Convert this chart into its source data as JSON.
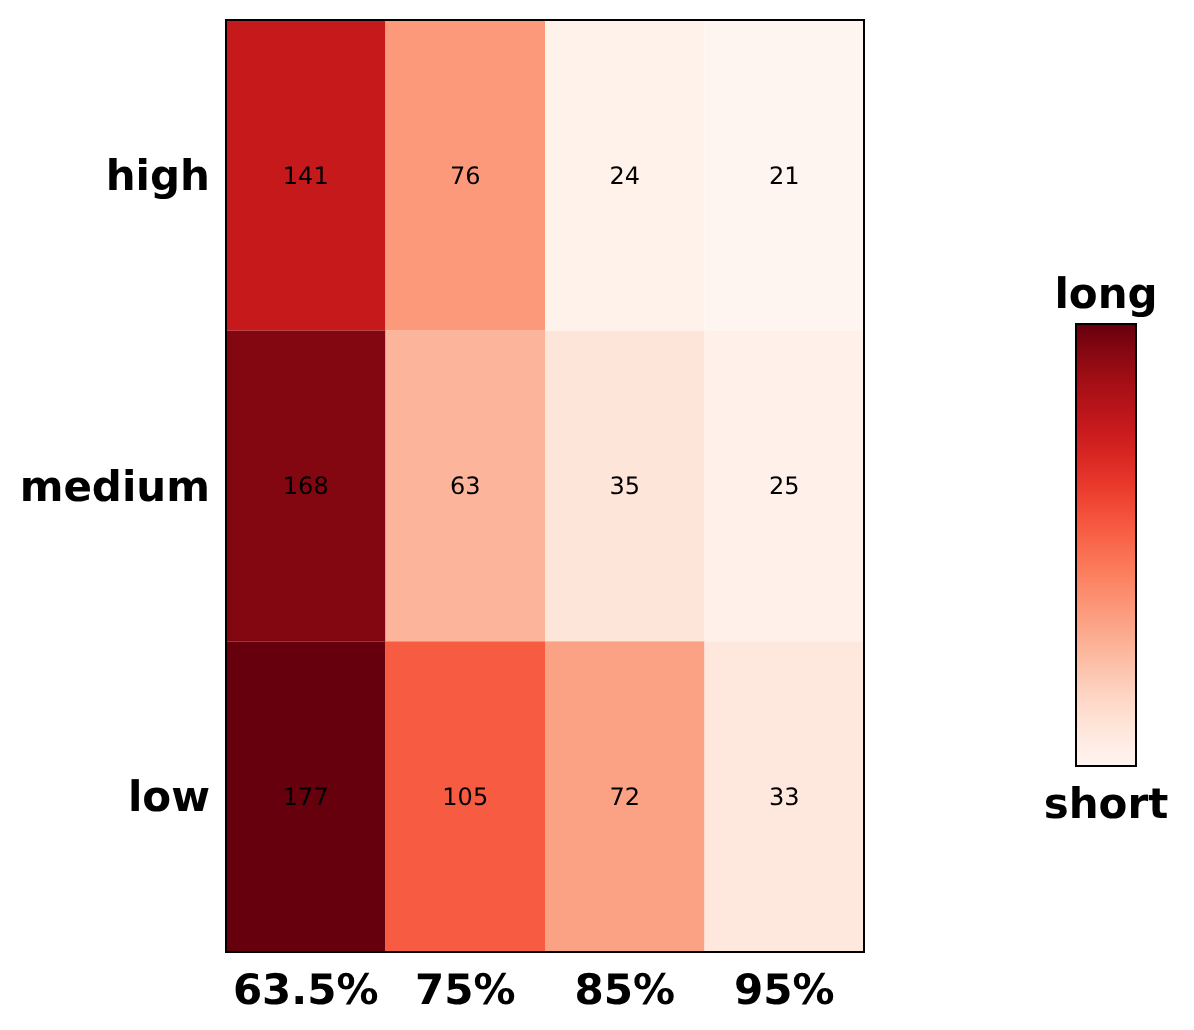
{
  "chart_data": {
    "type": "heatmap",
    "categories": [
      "63.5%",
      "75%",
      "85%",
      "95%"
    ],
    "y_categories": [
      "high",
      "medium",
      "low"
    ],
    "cells": [
      [
        141,
        76,
        24,
        21
      ],
      [
        168,
        63,
        35,
        25
      ],
      [
        177,
        105,
        72,
        33
      ]
    ],
    "data_labels": true,
    "annotations": [
      "long",
      "short"
    ]
  }
}
